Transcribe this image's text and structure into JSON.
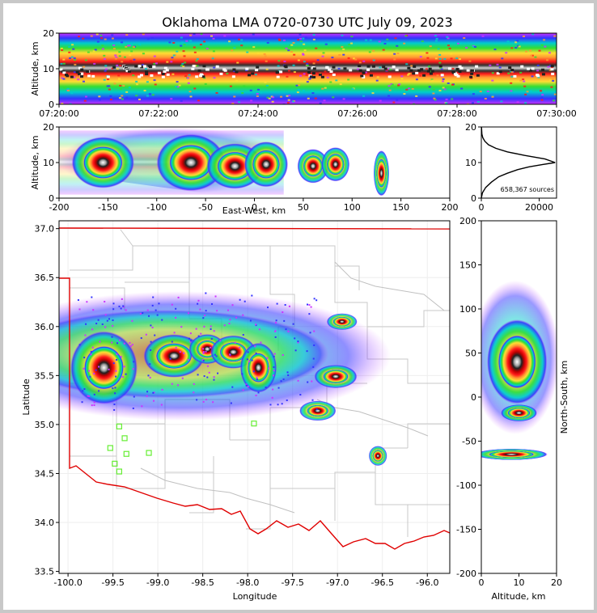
{
  "chart_data": [
    {
      "name": "time-height",
      "type": "heatmap",
      "title": "Oklahoma LMA 0720-0730 UTC July 09, 2023",
      "xlabel": "",
      "ylabel": "Altitude, km",
      "xticks": [
        "07:20:00",
        "07:22:00",
        "07:24:00",
        "07:26:00",
        "07:28:00",
        "07:30:00"
      ],
      "yticks": [
        0,
        10,
        20
      ],
      "ylim": [
        0,
        20
      ]
    },
    {
      "name": "ew-altitude",
      "type": "heatmap",
      "xlabel": "East-West, km",
      "ylabel": "Altitude, km",
      "xlim": [
        -200,
        200
      ],
      "ylim": [
        0,
        20
      ],
      "xticks": [
        -200,
        -150,
        -100,
        -50,
        0,
        50,
        100,
        150,
        200
      ],
      "yticks": [
        0,
        10,
        20
      ],
      "cells": [
        {
          "x": -155,
          "z": 10,
          "sx": 20,
          "sz": 4.5
        },
        {
          "x": -65,
          "z": 10,
          "sx": 22,
          "sz": 5
        },
        {
          "x": -20,
          "z": 9,
          "sx": 18,
          "sz": 4
        },
        {
          "x": 12,
          "z": 9.5,
          "sx": 14,
          "sz": 4
        },
        {
          "x": 60,
          "z": 9,
          "sx": 10,
          "sz": 3
        },
        {
          "x": 83,
          "z": 9.5,
          "sx": 9,
          "sz": 3
        },
        {
          "x": 130,
          "z": 7,
          "sx": 5,
          "sz": 4
        }
      ]
    },
    {
      "name": "altitude-histogram",
      "type": "line",
      "xlim": [
        0,
        26000
      ],
      "ylim": [
        0,
        20
      ],
      "xticks": [
        0,
        20000
      ],
      "yticks": [
        0,
        10,
        20
      ],
      "annotation": "658,367 sources",
      "x": [
        0,
        400,
        1500,
        3500,
        6000,
        9000,
        12500,
        16500,
        21000,
        25500,
        22000,
        15000,
        9000,
        5000,
        2500,
        1200,
        500,
        200,
        50
      ],
      "y": [
        0,
        1.5,
        3,
        4.5,
        6,
        7,
        8,
        8.8,
        9.4,
        10,
        11,
        12,
        13,
        14,
        15,
        16,
        17,
        18,
        20
      ]
    },
    {
      "name": "plan-view",
      "type": "heatmap",
      "xlabel": "Longitude",
      "ylabel": "Latitude",
      "xlim": [
        -100.1,
        -95.75
      ],
      "ylim": [
        33.48,
        37.08
      ],
      "xticks": [
        -100.0,
        -99.5,
        -99.0,
        -98.5,
        -98.0,
        -97.5,
        -97.0,
        -96.5,
        -96.0
      ],
      "yticks": [
        33.5,
        34.0,
        34.5,
        35.0,
        35.5,
        36.0,
        36.5,
        37.0
      ],
      "stations": [
        {
          "lon": -99.43,
          "lat": 34.98
        },
        {
          "lon": -99.37,
          "lat": 34.86
        },
        {
          "lon": -99.53,
          "lat": 34.76
        },
        {
          "lon": -99.35,
          "lat": 34.7
        },
        {
          "lon": -99.1,
          "lat": 34.71
        },
        {
          "lon": -99.48,
          "lat": 34.6
        },
        {
          "lon": -99.43,
          "lat": 34.52
        },
        {
          "lon": -97.93,
          "lat": 35.01
        }
      ],
      "cells": [
        {
          "lon": -99.6,
          "lat": 35.58,
          "sl": 0.22,
          "sa": 0.22
        },
        {
          "lon": -98.82,
          "lat": 35.7,
          "sl": 0.2,
          "sa": 0.13
        },
        {
          "lon": -98.45,
          "lat": 35.77,
          "sl": 0.12,
          "sa": 0.09
        },
        {
          "lon": -98.16,
          "lat": 35.74,
          "sl": 0.15,
          "sa": 0.1
        },
        {
          "lon": -97.88,
          "lat": 35.58,
          "sl": 0.12,
          "sa": 0.15
        },
        {
          "lon": -97.02,
          "lat": 35.49,
          "sl": 0.14,
          "sa": 0.07
        },
        {
          "lon": -97.22,
          "lat": 35.14,
          "sl": 0.12,
          "sa": 0.06
        },
        {
          "lon": -96.95,
          "lat": 36.05,
          "sl": 0.1,
          "sa": 0.05
        },
        {
          "lon": -96.55,
          "lat": 34.68,
          "sl": 0.06,
          "sa": 0.06
        }
      ]
    },
    {
      "name": "ns-altitude",
      "type": "heatmap",
      "xlabel": "Altitude, km",
      "ylabel": "North-South, km",
      "xlim": [
        0,
        20
      ],
      "ylim": [
        -200,
        200
      ],
      "xticks": [
        0,
        10,
        20
      ],
      "yticks": [
        -200,
        -150,
        -100,
        -50,
        0,
        50,
        100,
        150,
        200
      ],
      "cells": [
        {
          "z": 9.5,
          "y": 40,
          "sz": 5,
          "sy": 30
        },
        {
          "z": 10,
          "y": -18,
          "sz": 3,
          "sy": 6
        },
        {
          "z": 8,
          "y": -65,
          "sz": 6,
          "sy": 4
        }
      ]
    }
  ]
}
